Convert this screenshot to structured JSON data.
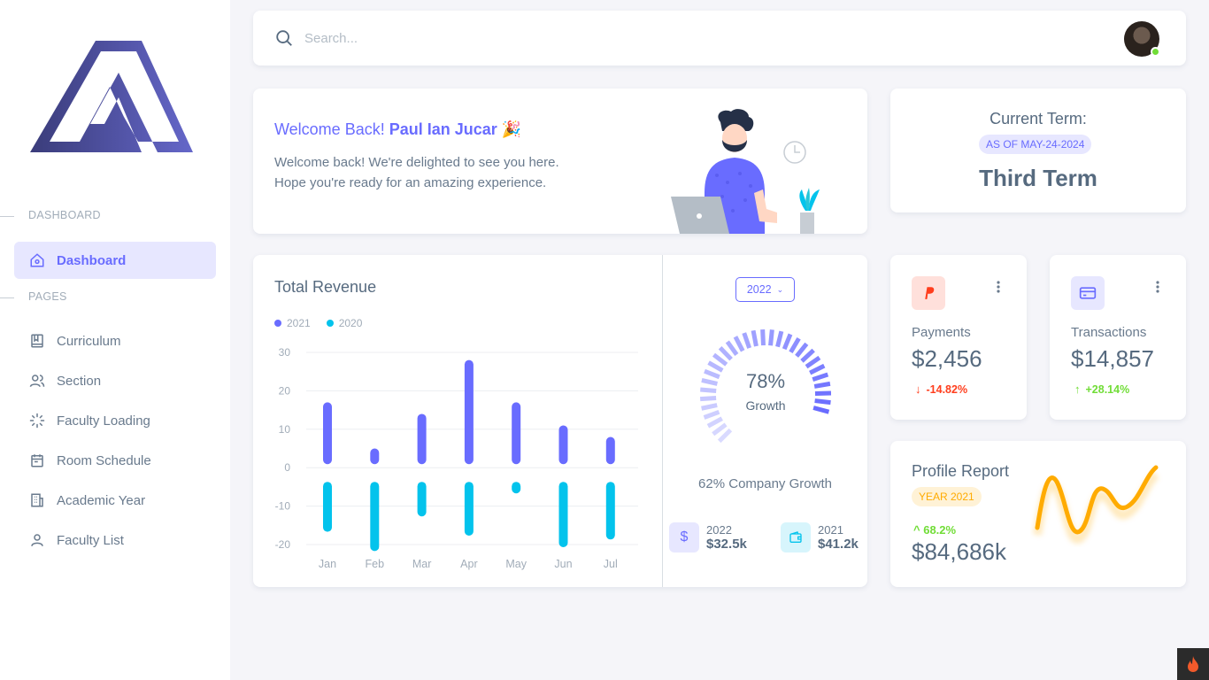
{
  "sidebar": {
    "sections": [
      {
        "header": "DASHBOARD"
      },
      {
        "header": "PAGES"
      }
    ],
    "active_item": {
      "label": "Dashboard",
      "icon": "home-icon"
    },
    "items": [
      {
        "label": "Curriculum",
        "icon": "book-icon"
      },
      {
        "label": "Section",
        "icon": "users-icon"
      },
      {
        "label": "Faculty Loading",
        "icon": "loader-icon"
      },
      {
        "label": "Room Schedule",
        "icon": "calendar-icon"
      },
      {
        "label": "Academic Year",
        "icon": "building-icon"
      },
      {
        "label": "Faculty List",
        "icon": "user-icon"
      }
    ]
  },
  "topbar": {
    "search_placeholder": "Search..."
  },
  "welcome": {
    "title_prefix": "Welcome Back!",
    "user_name": "Paul Ian Jucar",
    "emoji": "🎉",
    "line1": "Welcome back! We're delighted to see you here.",
    "line2": "Hope you're ready for an amazing experience."
  },
  "term": {
    "title": "Current Term:",
    "as_of": "AS OF MAY-24-2024",
    "value": "Third Term"
  },
  "revenue": {
    "title": "Total Revenue",
    "year_select": "2022",
    "growth_pct": "78%",
    "growth_label": "Growth",
    "gauge_value": 0.78,
    "company_growth": "62% Company Growth",
    "stats": [
      {
        "year": "2022",
        "value": "$32.5k",
        "icon": "dollar-icon"
      },
      {
        "year": "2021",
        "value": "$41.2k",
        "icon": "wallet-icon"
      }
    ]
  },
  "chart_data": {
    "type": "bar",
    "categories": [
      "Jan",
      "Feb",
      "Mar",
      "Apr",
      "May",
      "Jun",
      "Jul"
    ],
    "series": [
      {
        "name": "2021",
        "color": "#696cff",
        "values": [
          17,
          5,
          14,
          28,
          17,
          11,
          8
        ]
      },
      {
        "name": "2020",
        "color": "#03c3ec",
        "values": [
          -13,
          -18,
          -9,
          -14,
          -3,
          -17,
          -15
        ]
      }
    ],
    "yticks": [
      30,
      20,
      10,
      0,
      -10,
      -20
    ],
    "ylim": [
      -20,
      30
    ],
    "legend": "top-left",
    "grid": true
  },
  "payments": {
    "label": "Payments",
    "value": "$2,456",
    "change": "-14.82%",
    "icon": "paypal-icon",
    "change_color": "#ff3e1d"
  },
  "transactions": {
    "label": "Transactions",
    "value": "$14,857",
    "change": "+28.14%",
    "icon": "credit-card-icon",
    "change_color": "#71dd37"
  },
  "profile_report": {
    "title": "Profile Report",
    "badge": "YEAR 2021",
    "change": "68.2%",
    "value": "$84,686k"
  },
  "colors": {
    "primary": "#696cff",
    "info": "#03c3ec",
    "warning": "#ffab00",
    "success": "#71dd37",
    "danger": "#ff3e1d"
  }
}
